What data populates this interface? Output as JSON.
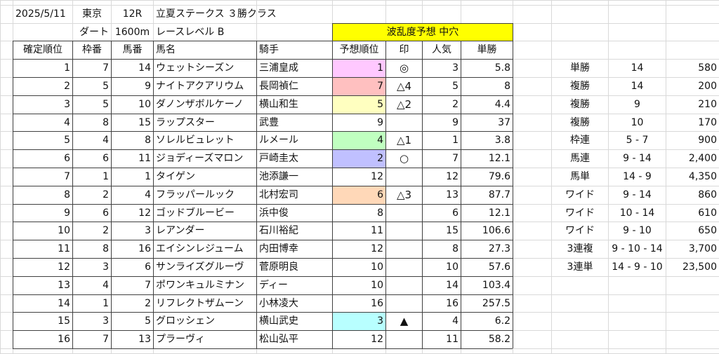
{
  "race": {
    "date": "2025/5/11",
    "venue": "東京",
    "race_no": "12R",
    "race_name": "立夏ステークス ３勝クラス",
    "surface": "ダート",
    "distance": "1600m",
    "level": "レースレベル B",
    "upset_forecast": "波乱度予想 中穴"
  },
  "columns": {
    "finish": "確定順位",
    "bracket": "枠番",
    "horse_no": "馬番",
    "horse": "馬名",
    "jockey": "騎手",
    "pred": "予想順位",
    "mark": "印",
    "pop": "人気",
    "odds": "単勝"
  },
  "colors": {
    "pink": "#ffc8ff",
    "red": "#ffc0c0",
    "yellow": "#ffffc0",
    "green": "#c0ffc0",
    "blue": "#c0c0ff",
    "orange": "#ffd8b8",
    "cyan": "#b8ffff",
    "header_yellow": "#ffff00"
  },
  "rows": [
    {
      "finish": "1",
      "bracket": "7",
      "horse_no": "14",
      "horse": "ウェットシーズン",
      "jockey": "三浦皇成",
      "pred": "1",
      "mark": "◎",
      "pop": "3",
      "odds": "5.8",
      "color": "pink"
    },
    {
      "finish": "2",
      "bracket": "5",
      "horse_no": "9",
      "horse": "ナイトアクアリウム",
      "jockey": "長岡禎仁",
      "pred": "7",
      "mark": "△4",
      "pop": "5",
      "odds": "8",
      "color": "red"
    },
    {
      "finish": "3",
      "bracket": "5",
      "horse_no": "10",
      "horse": "ダノンザボルケーノ",
      "jockey": "横山和生",
      "pred": "5",
      "mark": "△2",
      "pop": "2",
      "odds": "4.4",
      "color": "yellow"
    },
    {
      "finish": "4",
      "bracket": "8",
      "horse_no": "15",
      "horse": "ラップスター",
      "jockey": "武豊",
      "pred": "9",
      "mark": "",
      "pop": "9",
      "odds": "37",
      "color": ""
    },
    {
      "finish": "5",
      "bracket": "4",
      "horse_no": "8",
      "horse": "ソレルビュレット",
      "jockey": "ルメール",
      "pred": "4",
      "mark": "△1",
      "pop": "1",
      "odds": "3.8",
      "color": "green"
    },
    {
      "finish": "6",
      "bracket": "6",
      "horse_no": "11",
      "horse": "ジョディーズマロン",
      "jockey": "戸崎圭太",
      "pred": "2",
      "mark": "○",
      "pop": "7",
      "odds": "12.1",
      "color": "blue"
    },
    {
      "finish": "7",
      "bracket": "1",
      "horse_no": "1",
      "horse": "タイゲン",
      "jockey": "池添謙一",
      "pred": "12",
      "mark": "",
      "pop": "12",
      "odds": "79.6",
      "color": ""
    },
    {
      "finish": "8",
      "bracket": "2",
      "horse_no": "4",
      "horse": "フラッパールック",
      "jockey": "北村宏司",
      "pred": "6",
      "mark": "△3",
      "pop": "13",
      "odds": "87.7",
      "color": "orange"
    },
    {
      "finish": "9",
      "bracket": "6",
      "horse_no": "12",
      "horse": "ゴッドブルービー",
      "jockey": "浜中俊",
      "pred": "8",
      "mark": "",
      "pop": "6",
      "odds": "12.1",
      "color": ""
    },
    {
      "finish": "10",
      "bracket": "2",
      "horse_no": "3",
      "horse": "レアンダー",
      "jockey": "石川裕紀",
      "pred": "11",
      "mark": "",
      "pop": "15",
      "odds": "106.6",
      "color": ""
    },
    {
      "finish": "11",
      "bracket": "8",
      "horse_no": "16",
      "horse": "エイシンレジューム",
      "jockey": "内田博幸",
      "pred": "12",
      "mark": "",
      "pop": "8",
      "odds": "27.3",
      "color": ""
    },
    {
      "finish": "12",
      "bracket": "3",
      "horse_no": "6",
      "horse": "サンライズグルーヴ",
      "jockey": "菅原明良",
      "pred": "10",
      "mark": "",
      "pop": "10",
      "odds": "57.6",
      "color": ""
    },
    {
      "finish": "13",
      "bracket": "4",
      "horse_no": "7",
      "horse": "ポワンキュルミナン",
      "jockey": "ディー",
      "pred": "10",
      "mark": "",
      "pop": "14",
      "odds": "103.4",
      "color": ""
    },
    {
      "finish": "14",
      "bracket": "1",
      "horse_no": "2",
      "horse": "リフレクトザムーン",
      "jockey": "小林凌大",
      "pred": "16",
      "mark": "",
      "pop": "16",
      "odds": "257.5",
      "color": ""
    },
    {
      "finish": "15",
      "bracket": "3",
      "horse_no": "5",
      "horse": "グロッシェン",
      "jockey": "横山武史",
      "pred": "3",
      "mark": "▲",
      "pop": "4",
      "odds": "6.2",
      "color": "cyan"
    },
    {
      "finish": "16",
      "bracket": "7",
      "horse_no": "13",
      "horse": "プラーヴィ",
      "jockey": "松山弘平",
      "pred": "12",
      "mark": "",
      "pop": "11",
      "odds": "58.2",
      "color": ""
    }
  ],
  "payouts": [
    {
      "type": "単勝",
      "combo": "14",
      "amount": "580"
    },
    {
      "type": "複勝",
      "combo": "14",
      "amount": "200"
    },
    {
      "type": "複勝",
      "combo": "9",
      "amount": "210"
    },
    {
      "type": "複勝",
      "combo": "10",
      "amount": "170"
    },
    {
      "type": "枠連",
      "combo": "5 - 7",
      "amount": "900"
    },
    {
      "type": "馬連",
      "combo": "9 - 14",
      "amount": "2,400"
    },
    {
      "type": "馬単",
      "combo": "14 - 9",
      "amount": "4,350"
    },
    {
      "type": "ワイド",
      "combo": "9 - 14",
      "amount": "860"
    },
    {
      "type": "ワイド",
      "combo": "10 - 14",
      "amount": "610"
    },
    {
      "type": "ワイド",
      "combo": "9 - 10",
      "amount": "650"
    },
    {
      "type": "3連複",
      "combo": "9 - 10 - 14",
      "amount": "3,700"
    },
    {
      "type": "3連単",
      "combo": "14 - 9 - 10",
      "amount": "23,500"
    }
  ]
}
